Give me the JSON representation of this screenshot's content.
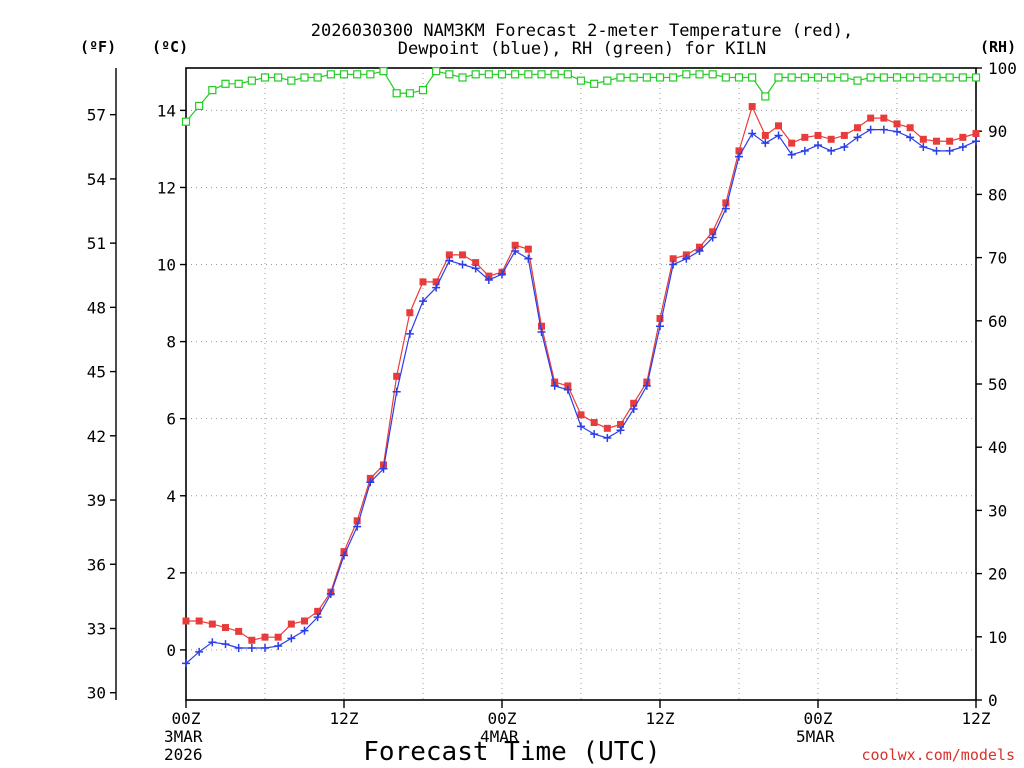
{
  "chart_data": {
    "type": "line",
    "title_line1": "2026030300 NAM3KM Forecast 2-meter Temperature (red),",
    "title_line2": "Dewpoint (blue), RH (green) for KILN",
    "xlabel": "Forecast Time (UTC)",
    "credit": "coolwx.com/models",
    "unit_f": "(ºF)",
    "unit_c": "(ºC)",
    "unit_rh": "(RH)",
    "x_range_hours": [
      0,
      60
    ],
    "y_left_c_range": [
      -1.3,
      15.1
    ],
    "y_right_rh_range": [
      0,
      100
    ],
    "x_ticks": [
      {
        "hour": 0,
        "label": "00Z",
        "date": "3MAR",
        "year": "2026"
      },
      {
        "hour": 12,
        "label": "12Z",
        "date": "",
        "year": ""
      },
      {
        "hour": 24,
        "label": "00Z",
        "date": "4MAR",
        "year": ""
      },
      {
        "hour": 36,
        "label": "12Z",
        "date": "",
        "year": ""
      },
      {
        "hour": 48,
        "label": "00Z",
        "date": "5MAR",
        "year": ""
      },
      {
        "hour": 60,
        "label": "12Z",
        "date": "",
        "year": ""
      }
    ],
    "y_ticks_c": [
      0,
      2,
      4,
      6,
      8,
      10,
      12,
      14
    ],
    "y_ticks_f": [
      30,
      33,
      36,
      39,
      42,
      45,
      48,
      51,
      54,
      57
    ],
    "y_ticks_rh": [
      0,
      10,
      20,
      30,
      40,
      50,
      60,
      70,
      80,
      90,
      100
    ],
    "series": [
      {
        "name": "Temperature",
        "unit": "C",
        "color": "#e83c3c",
        "values": [
          0.75,
          0.75,
          0.67,
          0.58,
          0.48,
          0.25,
          0.33,
          0.33,
          0.67,
          0.75,
          1.0,
          1.5,
          2.55,
          3.35,
          4.45,
          4.8,
          7.1,
          8.75,
          9.55,
          9.55,
          10.25,
          10.25,
          10.05,
          9.7,
          9.8,
          10.5,
          10.4,
          8.4,
          6.95,
          6.85,
          6.1,
          5.9,
          5.75,
          5.85,
          6.4,
          6.95,
          8.6,
          10.15,
          10.25,
          10.45,
          10.85,
          11.6,
          12.95,
          14.1,
          13.35,
          13.6,
          13.15,
          13.3,
          13.35,
          13.25,
          13.35,
          13.55,
          13.8,
          13.8,
          13.65,
          13.55,
          13.25,
          13.2,
          13.2,
          13.3,
          13.4
        ]
      },
      {
        "name": "Dewpoint",
        "unit": "C",
        "color": "#2a3ee8",
        "values": [
          -0.35,
          -0.05,
          0.2,
          0.15,
          0.05,
          0.05,
          0.05,
          0.1,
          0.3,
          0.5,
          0.85,
          1.45,
          2.45,
          3.2,
          4.35,
          4.7,
          6.7,
          8.2,
          9.05,
          9.4,
          10.1,
          10.0,
          9.9,
          9.6,
          9.75,
          10.35,
          10.15,
          8.25,
          6.85,
          6.75,
          5.8,
          5.6,
          5.5,
          5.7,
          6.25,
          6.85,
          8.4,
          10.0,
          10.15,
          10.35,
          10.7,
          11.45,
          12.8,
          13.4,
          13.15,
          13.35,
          12.85,
          12.95,
          13.1,
          12.95,
          13.05,
          13.3,
          13.5,
          13.5,
          13.45,
          13.3,
          13.05,
          12.95,
          12.95,
          13.05,
          13.2
        ]
      },
      {
        "name": "Relative Humidity",
        "unit": "%",
        "color": "#22cc22",
        "values": [
          91.5,
          94,
          96.5,
          97.5,
          97.5,
          98,
          98.5,
          98.5,
          98,
          98.5,
          98.5,
          99,
          99,
          99,
          99,
          99.5,
          96,
          96,
          96.5,
          99.5,
          99,
          98.5,
          99,
          99,
          99,
          99,
          99,
          99,
          99,
          99,
          98,
          97.5,
          98,
          98.5,
          98.5,
          98.5,
          98.5,
          98.5,
          99,
          99,
          99,
          98.5,
          98.5,
          98.5,
          95.5,
          98.5,
          98.5,
          98.5,
          98.5,
          98.5,
          98.5,
          98,
          98.5,
          98.5,
          98.5,
          98.5,
          98.5,
          98.5,
          98.5,
          98.5,
          98.5
        ]
      }
    ]
  }
}
